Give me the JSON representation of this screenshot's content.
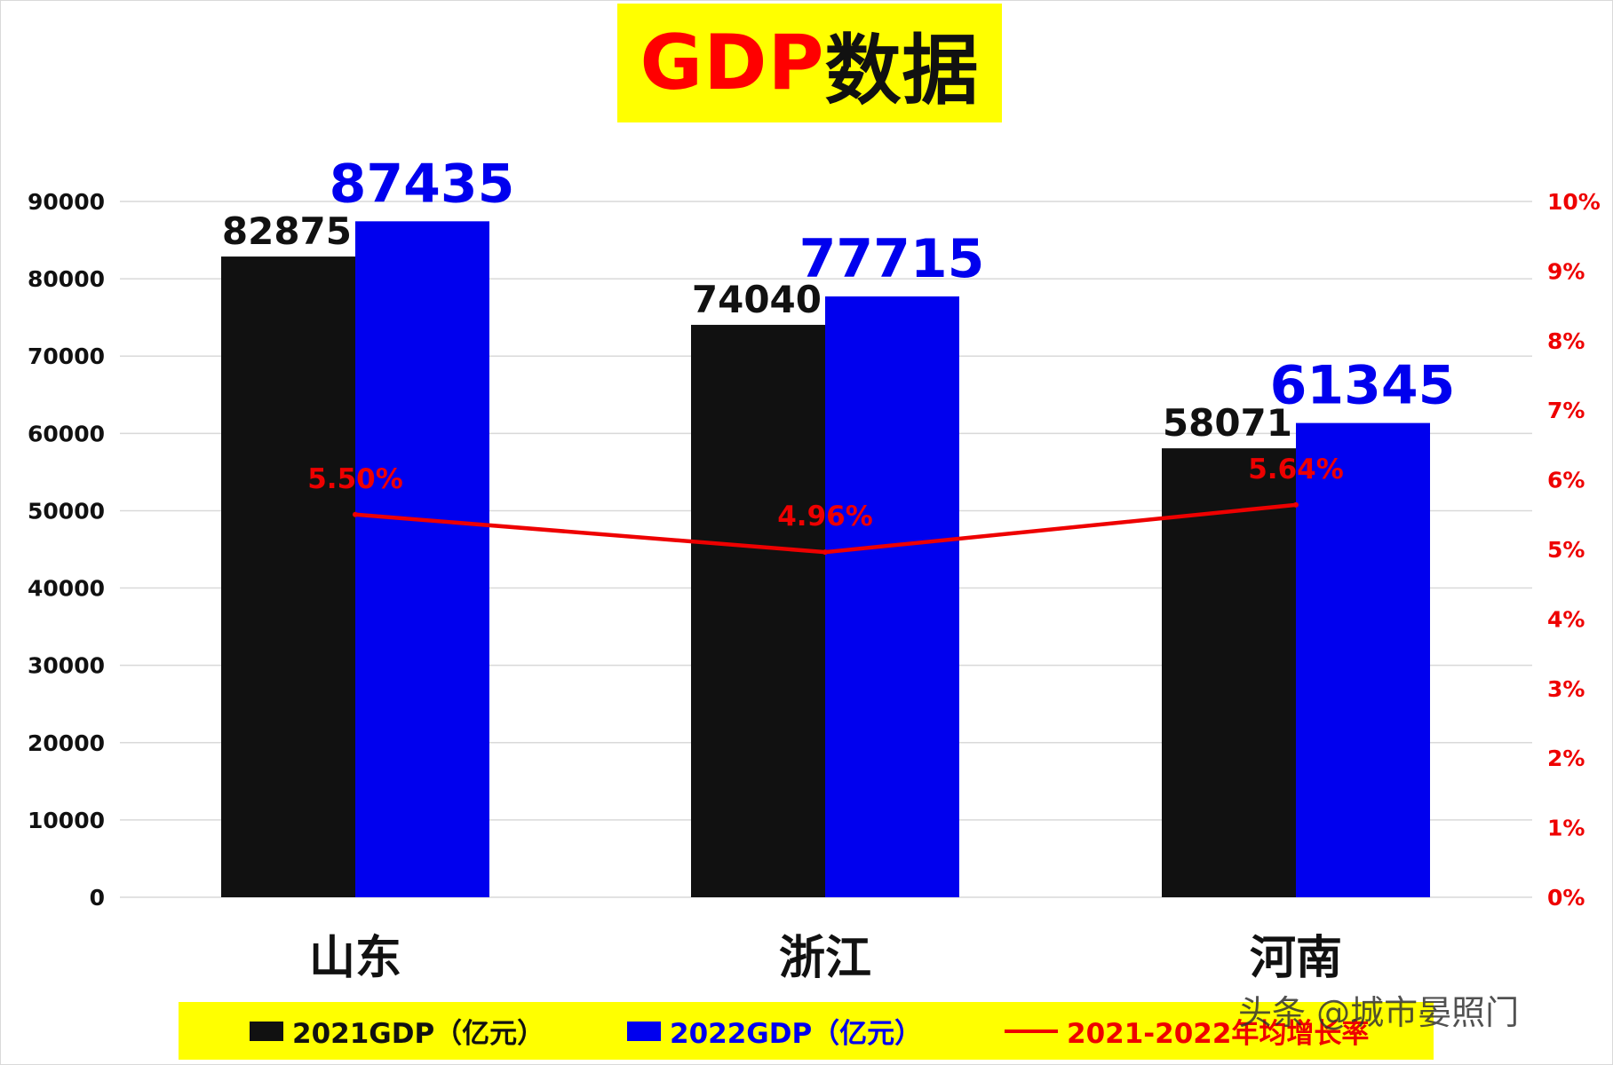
{
  "title": {
    "prefix": "GDP",
    "suffix": "数据"
  },
  "watermark": "头条 @城市晏照门",
  "colors": {
    "series2021": "#111111",
    "series2022": "#0000ee",
    "growth": "#ee0000",
    "title_bg": "#ffff00",
    "grid": "#d9d9d9"
  },
  "chart_data": {
    "type": "bar",
    "categories": [
      "山东",
      "浙江",
      "河南"
    ],
    "series": [
      {
        "name": "2021GDP（亿元）",
        "values": [
          82875,
          74040,
          58071
        ],
        "axis": "left",
        "color": "#111111"
      },
      {
        "name": "2022GDP（亿元）",
        "values": [
          87435,
          77715,
          61345
        ],
        "axis": "left",
        "color": "#0000ee"
      },
      {
        "name": "2021-2022年均增长率",
        "type": "line",
        "values": [
          5.5,
          4.96,
          5.64
        ],
        "value_labels": [
          "5.50%",
          "4.96%",
          "5.64%"
        ],
        "axis": "right",
        "color": "#ee0000"
      }
    ],
    "y_left": {
      "range": [
        0,
        90000
      ],
      "ticks": [
        "0",
        "10000",
        "20000",
        "30000",
        "40000",
        "50000",
        "60000",
        "70000",
        "80000",
        "90000"
      ]
    },
    "y_right": {
      "range": [
        0,
        10
      ],
      "ticks": [
        "0%",
        "1%",
        "2%",
        "3%",
        "4%",
        "5%",
        "6%",
        "7%",
        "8%",
        "9%",
        "10%"
      ]
    },
    "grid": true,
    "legend_position": "bottom"
  }
}
